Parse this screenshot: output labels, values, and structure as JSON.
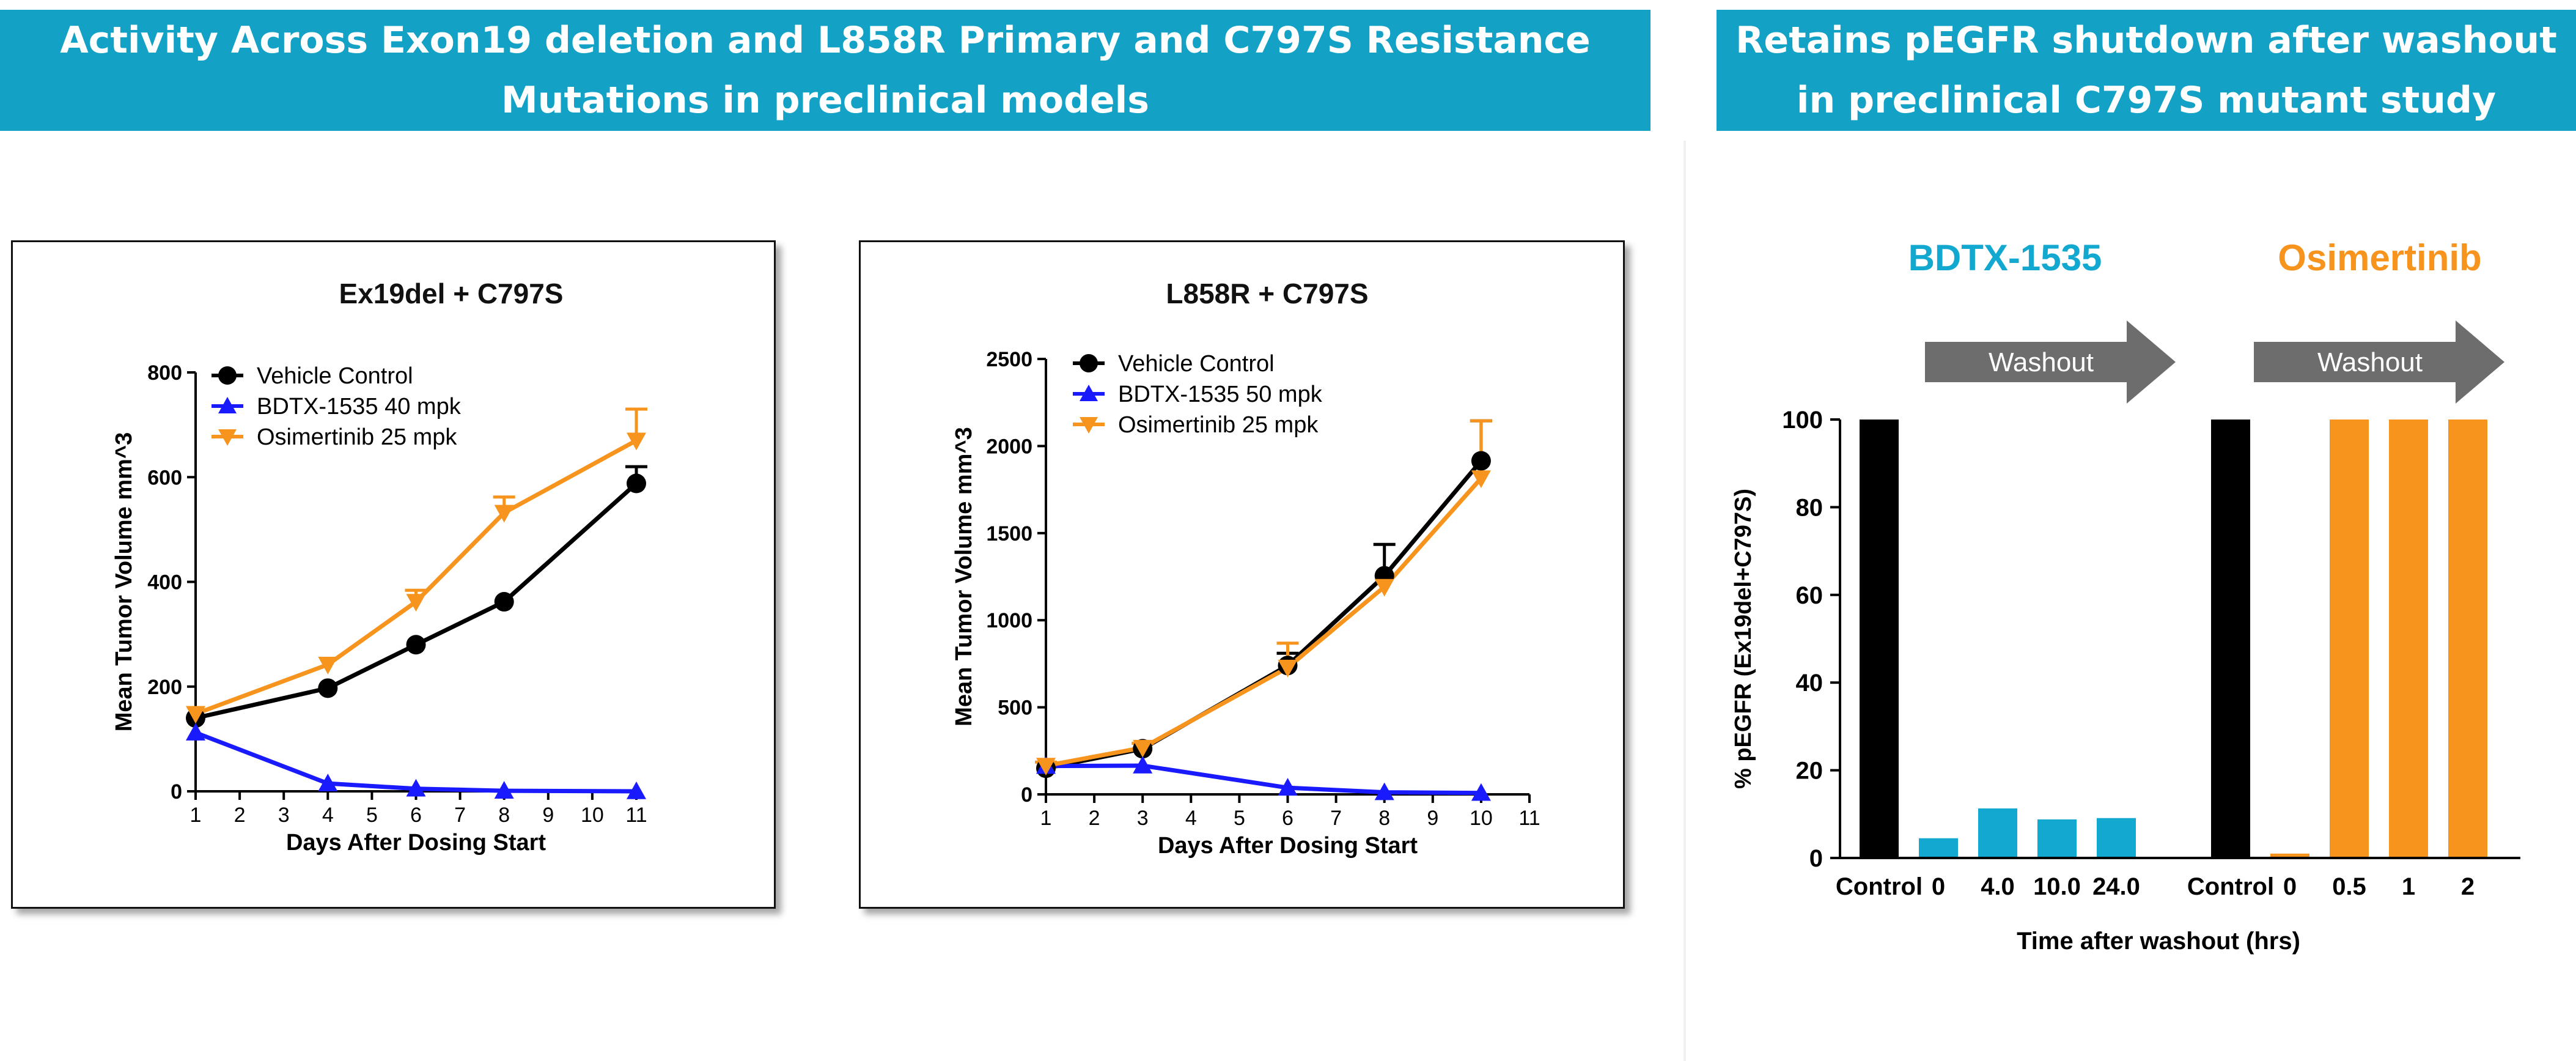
{
  "banners": {
    "left": {
      "line1": "Activity Across Exon19 deletion and L858R Primary and C797S Resistance",
      "line2": "Mutations in preclinical models"
    },
    "right": {
      "line1": "Retains pEGFR shutdown after washout",
      "line2": "in preclinical C797S mutant study"
    }
  },
  "colors": {
    "banner": "#13a1c6",
    "vehicle": "#000000",
    "bdtx": "#1a1aff",
    "osimertinib": "#f7941d",
    "bdtx_bar": "#13a8cf",
    "arrow": "#6d6d6d"
  },
  "chart_data": [
    {
      "type": "line",
      "title": "Ex19del + C797S",
      "xlabel": "Days After Dosing Start",
      "ylabel": "Mean Tumor Volume mm^3",
      "xlim": [
        1,
        11
      ],
      "ylim": [
        0,
        800
      ],
      "xticks": [
        1,
        2,
        3,
        4,
        5,
        6,
        7,
        8,
        9,
        10,
        11
      ],
      "yticks": [
        0,
        200,
        400,
        600,
        800
      ],
      "legend_position": "top-left",
      "series": [
        {
          "name": "Vehicle Control",
          "marker": "circle",
          "color": "#000000",
          "x": [
            1,
            4,
            6,
            8,
            11
          ],
          "values": [
            140,
            197,
            280,
            362,
            588
          ],
          "error": [
            0,
            0,
            0,
            0,
            32
          ]
        },
        {
          "name": "BDTX-1535 40 mpk",
          "marker": "triangle-up",
          "color": "#1a1aff",
          "x": [
            1,
            4,
            6,
            8,
            11
          ],
          "values": [
            112,
            15,
            5,
            1,
            0
          ],
          "error": [
            0,
            0,
            0,
            0,
            0
          ]
        },
        {
          "name": "Osimertinib 25 mpk",
          "marker": "triangle-down",
          "color": "#f7941d",
          "x": [
            1,
            4,
            6,
            8,
            11
          ],
          "values": [
            148,
            242,
            362,
            532,
            670
          ],
          "error": [
            0,
            0,
            22,
            30,
            60
          ]
        }
      ]
    },
    {
      "type": "line",
      "title": "L858R + C797S",
      "xlabel": "Days After Dosing Start",
      "ylabel": "Mean Tumor Volume mm^3",
      "xlim": [
        1,
        11
      ],
      "ylim": [
        0,
        2500
      ],
      "xticks": [
        1,
        2,
        3,
        4,
        5,
        6,
        7,
        8,
        9,
        10,
        11
      ],
      "yticks": [
        0,
        500,
        1000,
        1500,
        2000,
        2500
      ],
      "legend_position": "top-left",
      "series": [
        {
          "name": "Vehicle Control",
          "marker": "circle",
          "color": "#000000",
          "x": [
            1,
            3,
            6,
            8,
            10
          ],
          "values": [
            150,
            262,
            740,
            1255,
            1915
          ],
          "error": [
            0,
            0,
            70,
            180,
            230
          ]
        },
        {
          "name": "BDTX-1535 50 mpk",
          "marker": "triangle-up",
          "color": "#1a1aff",
          "x": [
            1,
            3,
            6,
            8,
            10
          ],
          "values": [
            163,
            165,
            38,
            12,
            8
          ],
          "error": [
            0,
            0,
            0,
            0,
            0
          ]
        },
        {
          "name": "Osimertinib 25 mpk",
          "marker": "triangle-down",
          "color": "#f7941d",
          "x": [
            1,
            3,
            6,
            8,
            10
          ],
          "values": [
            165,
            268,
            728,
            1192,
            1815
          ],
          "error": [
            20,
            25,
            140,
            0,
            330
          ]
        }
      ]
    },
    {
      "type": "bar",
      "ylabel": "% pEGFR (Ex19del+C797S)",
      "xlabel": "Time after washout (hrs)",
      "ylim": [
        0,
        100
      ],
      "yticks": [
        0,
        20,
        40,
        60,
        80,
        100
      ],
      "groups": [
        {
          "name": "BDTX-1535",
          "arrow_label": "Washout",
          "color": "#13a8cf",
          "categories": [
            "Control",
            "0",
            "4.0",
            "10.0",
            "24.0"
          ],
          "values": [
            100,
            4.5,
            11.3,
            8.8,
            9.1
          ],
          "bar_colors": [
            "#000000",
            "#13a8cf",
            "#13a8cf",
            "#13a8cf",
            "#13a8cf"
          ]
        },
        {
          "name": "Osimertinib",
          "arrow_label": "Washout",
          "color": "#f7941d",
          "categories": [
            "Control",
            "0",
            "0.5",
            "1",
            "2"
          ],
          "values": [
            100,
            1.0,
            100,
            100,
            100
          ],
          "bar_colors": [
            "#000000",
            "#f7941d",
            "#f7941d",
            "#f7941d",
            "#f7941d"
          ]
        }
      ]
    }
  ]
}
